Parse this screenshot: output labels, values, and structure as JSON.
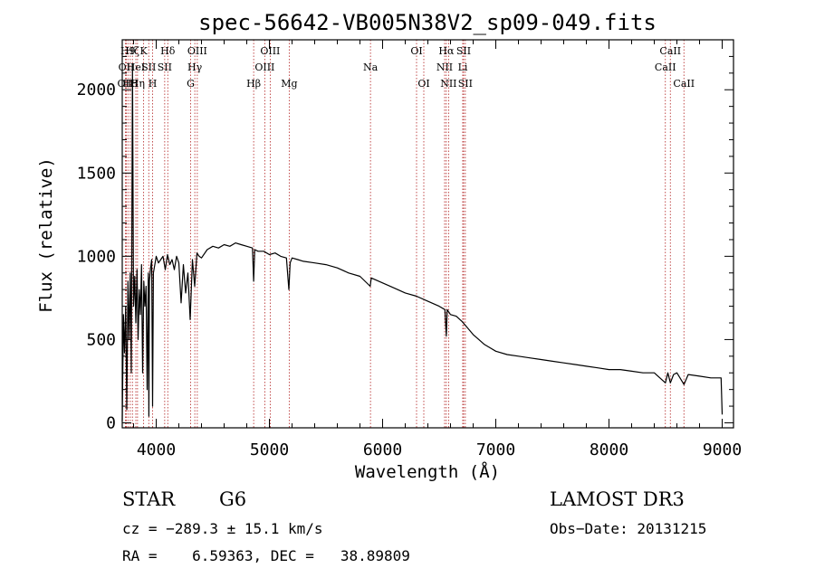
{
  "chart_data": {
    "type": "line",
    "title": "spec-56642-VB005N38V2_sp09-049.fits",
    "xlabel": "Wavelength (Å)",
    "ylabel": "Flux (relative)",
    "xlim": [
      3700,
      9100
    ],
    "ylim": [
      -30,
      2300
    ],
    "xticks": [
      4000,
      5000,
      6000,
      7000,
      8000,
      9000
    ],
    "yticks": [
      0,
      500,
      1000,
      1500,
      2000
    ],
    "series": [
      {
        "name": "flux",
        "x": [
          3700,
          3710,
          3720,
          3730,
          3740,
          3750,
          3760,
          3770,
          3780,
          3790,
          3800,
          3810,
          3820,
          3830,
          3840,
          3850,
          3860,
          3870,
          3880,
          3890,
          3900,
          3910,
          3920,
          3930,
          3935,
          3940,
          3950,
          3960,
          3968,
          3975,
          3990,
          4000,
          4020,
          4040,
          4060,
          4080,
          4100,
          4120,
          4140,
          4160,
          4180,
          4200,
          4220,
          4240,
          4260,
          4280,
          4300,
          4320,
          4340,
          4360,
          4380,
          4400,
          4450,
          4500,
          4550,
          4600,
          4650,
          4700,
          4750,
          4800,
          4850,
          4861,
          4870,
          4900,
          4950,
          5000,
          5050,
          5100,
          5150,
          5172,
          5183,
          5200,
          5250,
          5300,
          5400,
          5500,
          5600,
          5700,
          5800,
          5890,
          5900,
          6000,
          6100,
          6200,
          6300,
          6400,
          6500,
          6550,
          6563,
          6570,
          6600,
          6650,
          6700,
          6750,
          6800,
          6850,
          6900,
          6950,
          7000,
          7100,
          7200,
          7300,
          7400,
          7500,
          7600,
          7700,
          7800,
          7900,
          8000,
          8100,
          8200,
          8300,
          8400,
          8498,
          8520,
          8542,
          8570,
          8600,
          8662,
          8700,
          8800,
          8900,
          8990,
          9000
        ],
        "y": [
          10,
          650,
          420,
          700,
          80,
          850,
          500,
          900,
          300,
          2150,
          700,
          880,
          600,
          920,
          500,
          800,
          650,
          950,
          300,
          850,
          700,
          820,
          200,
          900,
          40,
          850,
          930,
          980,
          100,
          900,
          960,
          1000,
          960,
          980,
          1000,
          920,
          1010,
          950,
          980,
          920,
          1000,
          960,
          720,
          950,
          780,
          900,
          620,
          980,
          820,
          1020,
          1000,
          990,
          1040,
          1060,
          1050,
          1070,
          1060,
          1080,
          1070,
          1060,
          1050,
          850,
          1040,
          1030,
          1030,
          1010,
          1020,
          1000,
          990,
          800,
          960,
          990,
          980,
          970,
          960,
          950,
          930,
          900,
          880,
          820,
          870,
          840,
          810,
          780,
          760,
          730,
          700,
          680,
          520,
          680,
          650,
          640,
          610,
          570,
          530,
          500,
          470,
          450,
          430,
          410,
          400,
          390,
          380,
          370,
          360,
          350,
          340,
          330,
          320,
          320,
          310,
          300,
          300,
          240,
          300,
          240,
          290,
          300,
          230,
          290,
          280,
          270,
          270,
          50
        ]
      }
    ],
    "lines": [
      {
        "wavelength": 3727,
        "label": "OII",
        "row": 2
      },
      {
        "wavelength": 3736,
        "label": "OII",
        "row": 1
      },
      {
        "wavelength": 3750,
        "label": "H9",
        "row": 0
      },
      {
        "wavelength": 3771,
        "label": "H8",
        "row": 2
      },
      {
        "wavelength": 3790,
        "label": "Hζ",
        "row": 0
      },
      {
        "wavelength": 3820,
        "label": "HeI",
        "row": 1
      },
      {
        "wavelength": 3835,
        "label": "Hη",
        "row": 2
      },
      {
        "wavelength": 3889,
        "label": "K",
        "row": 0
      },
      {
        "wavelength": 3934,
        "label": "SII",
        "row": 1
      },
      {
        "wavelength": 3968,
        "label": "H",
        "row": 2
      },
      {
        "wavelength": 4102,
        "label": "Hδ",
        "row": 0
      },
      {
        "wavelength": 4075,
        "label": "SII",
        "row": 1
      },
      {
        "wavelength": 4304,
        "label": "G",
        "row": 2
      },
      {
        "wavelength": 4341,
        "label": "Hγ",
        "row": 1
      },
      {
        "wavelength": 4363,
        "label": "OIII",
        "row": 0
      },
      {
        "wavelength": 4861,
        "label": "Hβ",
        "row": 2
      },
      {
        "wavelength": 4959,
        "label": "OIII",
        "row": 1
      },
      {
        "wavelength": 5007,
        "label": "OIII",
        "row": 0
      },
      {
        "wavelength": 5175,
        "label": "Mg",
        "row": 2
      },
      {
        "wavelength": 5893,
        "label": "Na",
        "row": 1
      },
      {
        "wavelength": 6300,
        "label": "OI",
        "row": 0
      },
      {
        "wavelength": 6364,
        "label": "OI",
        "row": 2
      },
      {
        "wavelength": 6548,
        "label": "NII",
        "row": 1
      },
      {
        "wavelength": 6563,
        "label": "Hα",
        "row": 0
      },
      {
        "wavelength": 6583,
        "label": "NII",
        "row": 2
      },
      {
        "wavelength": 6708,
        "label": "Li",
        "row": 1
      },
      {
        "wavelength": 6716,
        "label": "SII",
        "row": 0
      },
      {
        "wavelength": 6731,
        "label": "SII",
        "row": 2
      },
      {
        "wavelength": 8498,
        "label": "CaII",
        "row": 1
      },
      {
        "wavelength": 8542,
        "label": "CaII",
        "row": 0
      },
      {
        "wavelength": 8662,
        "label": "CaII",
        "row": 2
      }
    ],
    "line_color": "#b22222"
  },
  "info": {
    "class": "STAR",
    "subclass": "G6",
    "survey": "LAMOST DR3",
    "redshift": "cz = −289.3 ± 15.1 km/s",
    "obs_date": "Obs−Date: 20131215",
    "coords": "RA =    6.59363, DEC =   38.89809"
  }
}
